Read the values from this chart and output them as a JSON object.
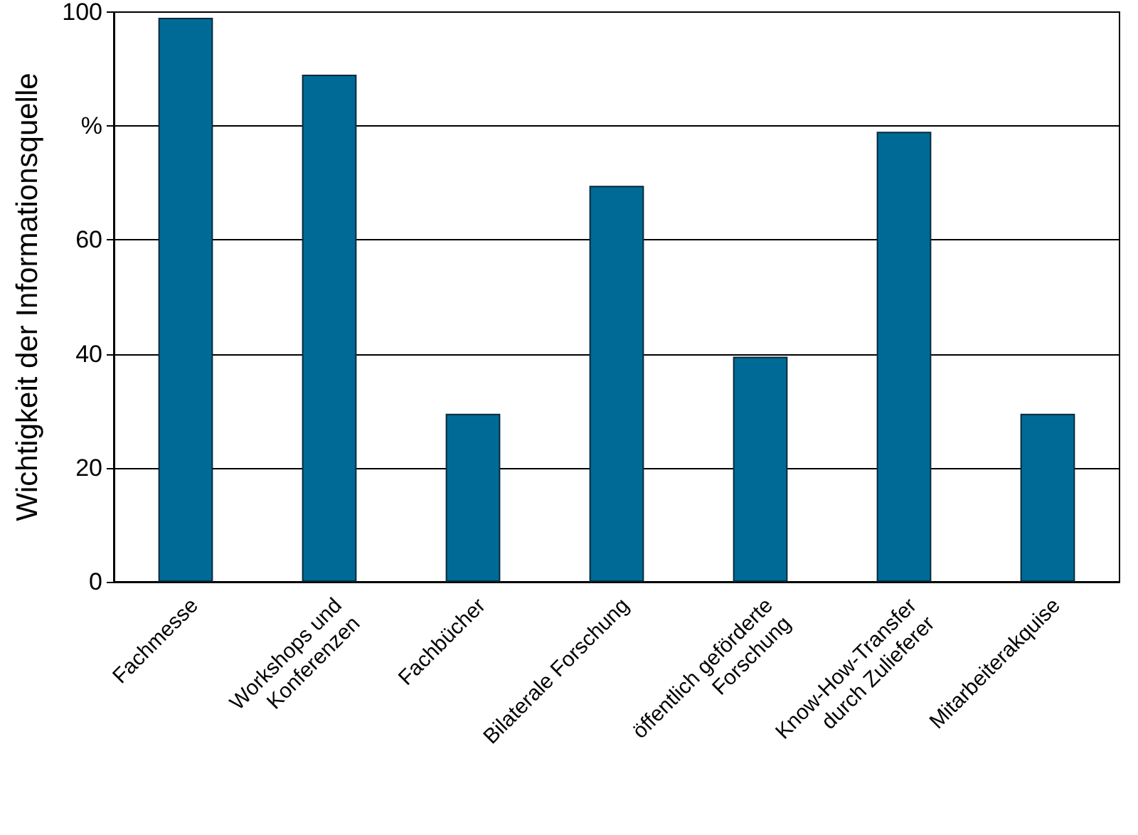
{
  "chart_data": {
    "type": "bar",
    "ylabel": "Wichtigkeit der Informationsquelle",
    "categories": [
      "Fachmesse",
      "Workshops und\nKonferenzen",
      "Fachbücher",
      "Bilaterale Forschung",
      "öffentlich geförderte\nForschung",
      "Know-How-Transfer\ndurch Zulieferer",
      "Mitarbeiterakquise"
    ],
    "values": [
      99,
      89,
      29.5,
      69.5,
      39.5,
      79,
      29.5
    ],
    "color": "#006a96",
    "ylim": [
      0,
      100
    ],
    "yticks": [
      0,
      20,
      40,
      60,
      {
        "value": 80,
        "label": "%"
      },
      100
    ],
    "grid": "y"
  }
}
